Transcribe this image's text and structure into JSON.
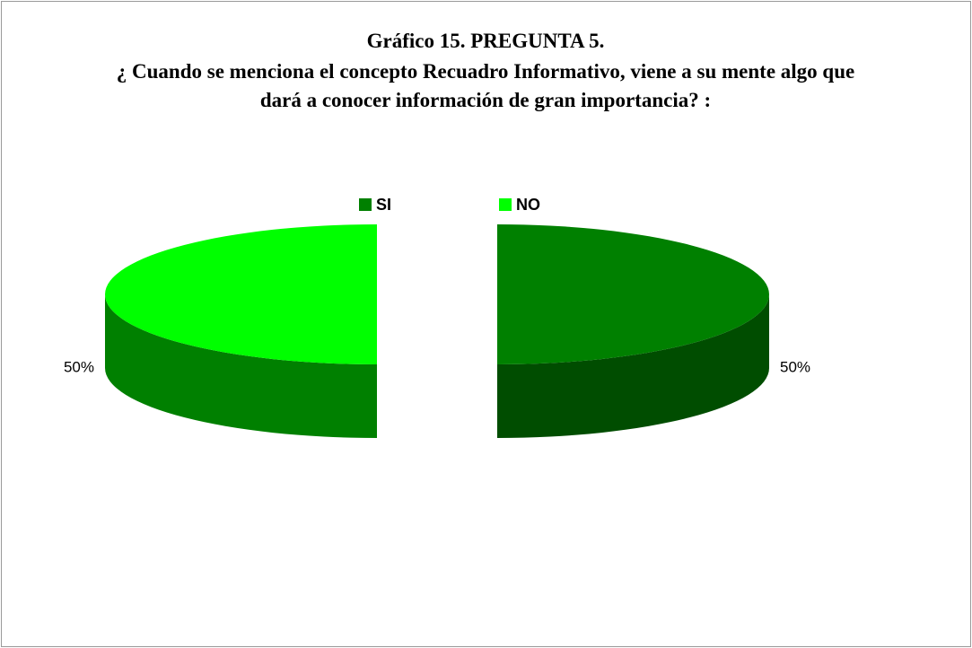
{
  "chart_data": {
    "type": "pie3d",
    "title": "Gráfico 15. PREGUNTA 5.",
    "subtitle": "¿ Cuando se menciona el concepto Recuadro Informativo, viene a su mente algo que dará a conocer información  de gran importancia? :",
    "categories": [
      "SI",
      "NO"
    ],
    "values": [
      50,
      50
    ],
    "value_labels": [
      "50%",
      "50%"
    ],
    "colors": [
      "#008000",
      "#00ff00"
    ],
    "legend": "top"
  }
}
